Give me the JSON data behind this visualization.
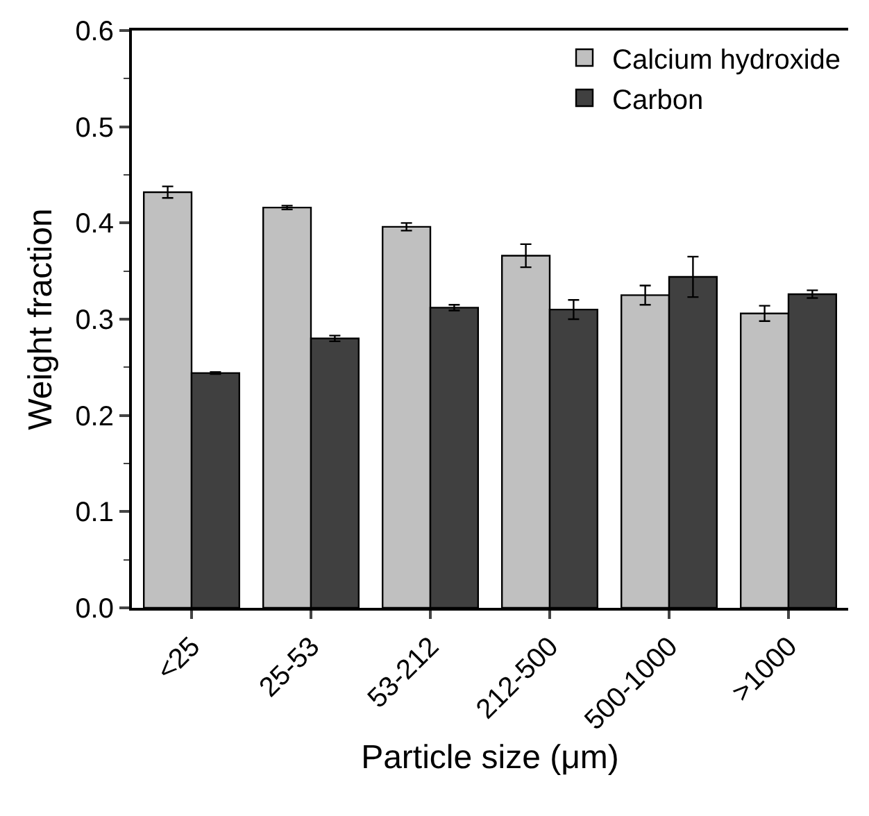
{
  "chart_data": {
    "type": "bar",
    "xlabel": "Particle size (μm)",
    "ylabel": "Weight fraction",
    "categories": [
      "<25",
      "25-53",
      "53-212",
      "212-500",
      "500-1000",
      ">1000"
    ],
    "series": [
      {
        "name": "Calcium hydroxide",
        "color": "#c0c0c0",
        "values": [
          0.432,
          0.416,
          0.396,
          0.366,
          0.325,
          0.306
        ],
        "errors": [
          0.006,
          0.002,
          0.004,
          0.012,
          0.01,
          0.008
        ]
      },
      {
        "name": "Carbon",
        "color": "#404040",
        "values": [
          0.244,
          0.28,
          0.312,
          0.31,
          0.344,
          0.326
        ],
        "errors": [
          0.001,
          0.003,
          0.003,
          0.01,
          0.021,
          0.004
        ]
      }
    ],
    "ylim": [
      0,
      0.6
    ],
    "yticks": [
      "0.0",
      0.1,
      0.2,
      0.3,
      0.4,
      0.5,
      0.6
    ],
    "grid": false,
    "legend": "top right"
  }
}
